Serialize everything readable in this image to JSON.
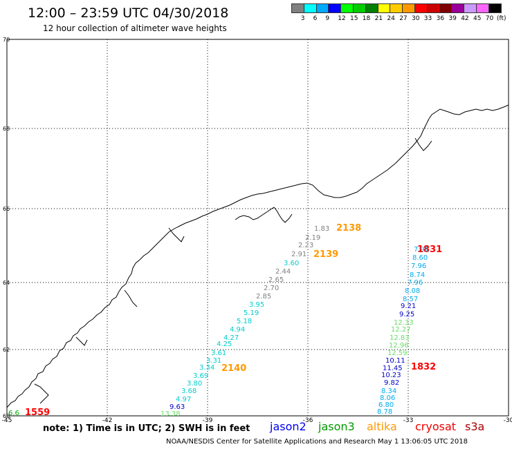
{
  "header": {
    "title": "12:00 – 23:59 UTC 04/30/2018",
    "subtitle": "12 hour collection of altimeter wave heights"
  },
  "legend": {
    "labels": [
      "3",
      "6",
      "9",
      "12",
      "15",
      "18",
      "21",
      "24",
      "27",
      "30",
      "33",
      "36",
      "39",
      "42",
      "45",
      "70"
    ],
    "unit": "(ft)",
    "colors": [
      "#808080",
      "#00ffff",
      "#00aaff",
      "#0000ff",
      "#00ff00",
      "#00cc00",
      "#008000",
      "#ffff00",
      "#ffcc00",
      "#ff9900",
      "#ff0000",
      "#cc0000",
      "#800000",
      "#990099",
      "#cc99ff",
      "#ff66ff",
      "#000000"
    ]
  },
  "axes": {
    "lon_labels": [
      "-45",
      "-42",
      "-39",
      "-36",
      "-33",
      "-30"
    ],
    "lat_labels": [
      "70",
      "68",
      "66",
      "64",
      "62",
      "60"
    ]
  },
  "tracks": [
    {
      "label": "2138",
      "color": "#ff9900"
    },
    {
      "label": "2139",
      "color": "#ff9900"
    },
    {
      "label": "2140",
      "color": "#ff9900"
    },
    {
      "label": "1831",
      "color": "#ff0000"
    },
    {
      "label": "1832",
      "color": "#ff0000"
    },
    {
      "label": "1559",
      "color": "#ff0000"
    }
  ],
  "measurements": [
    {
      "v": "1.83",
      "c": "#808080"
    },
    {
      "v": "2.19",
      "c": "#808080"
    },
    {
      "v": "2.23",
      "c": "#808080"
    },
    {
      "v": "2.91",
      "c": "#808080"
    },
    {
      "v": "3.60",
      "c": "#00cccc"
    },
    {
      "v": "2.44",
      "c": "#808080"
    },
    {
      "v": "2.65",
      "c": "#808080"
    },
    {
      "v": "2.70",
      "c": "#808080"
    },
    {
      "v": "2.85",
      "c": "#808080"
    },
    {
      "v": "3.95",
      "c": "#00cccc"
    },
    {
      "v": "5.19",
      "c": "#00cccc"
    },
    {
      "v": "5.18",
      "c": "#00cccc"
    },
    {
      "v": "4.94",
      "c": "#00cccc"
    },
    {
      "v": "4.27",
      "c": "#00cccc"
    },
    {
      "v": "4.25",
      "c": "#00cccc"
    },
    {
      "v": "3.61",
      "c": "#00cccc"
    },
    {
      "v": "3.31",
      "c": "#00cccc"
    },
    {
      "v": "3.34",
      "c": "#00cccc"
    },
    {
      "v": "3.69",
      "c": "#00cccc"
    },
    {
      "v": "3.80",
      "c": "#00cccc"
    },
    {
      "v": "3.68",
      "c": "#00cccc"
    },
    {
      "v": "4.97",
      "c": "#00cccc"
    },
    {
      "v": "9.63",
      "c": "#0000cc"
    },
    {
      "v": "13.38",
      "c": "#66dd66"
    },
    {
      "v": "7.91",
      "c": "#00aaee"
    },
    {
      "v": "8.60",
      "c": "#00aaee"
    },
    {
      "v": "7.96",
      "c": "#00aaee"
    },
    {
      "v": "8.74",
      "c": "#00aaee"
    },
    {
      "v": "7.96",
      "c": "#00aaee"
    },
    {
      "v": "8.08",
      "c": "#00aaee"
    },
    {
      "v": "8.57",
      "c": "#00aaee"
    },
    {
      "v": "9.21",
      "c": "#0000cc"
    },
    {
      "v": "9.25",
      "c": "#0000cc"
    },
    {
      "v": "12.33",
      "c": "#66dd66"
    },
    {
      "v": "12.27",
      "c": "#66dd66"
    },
    {
      "v": "12.83",
      "c": "#66dd66"
    },
    {
      "v": "12.96",
      "c": "#66dd66"
    },
    {
      "v": "12.59",
      "c": "#66dd66"
    },
    {
      "v": "10.11",
      "c": "#0000cc"
    },
    {
      "v": "11.45",
      "c": "#0000cc"
    },
    {
      "v": "10.23",
      "c": "#0000cc"
    },
    {
      "v": "9.82",
      "c": "#0000cc"
    },
    {
      "v": "8.34",
      "c": "#00aaee"
    },
    {
      "v": "8.06",
      "c": "#00aaee"
    },
    {
      "v": "6.80",
      "c": "#00aaee"
    },
    {
      "v": "8.78",
      "c": "#00aaee"
    },
    {
      "v": "6.6",
      "c": "#00aa00"
    }
  ],
  "footer": {
    "note": "note:  1) Time is in UTC;  2) SWH is in feet",
    "satellites": [
      {
        "name": "jason2",
        "color": "#0000ee"
      },
      {
        "name": "jason3",
        "color": "#009900"
      },
      {
        "name": "altika",
        "color": "#ff9900"
      },
      {
        "name": "cryosat",
        "color": "#ee0000"
      },
      {
        "name": "s3a",
        "color": "#aa0000"
      }
    ],
    "credit": "NOAA/NESDIS Center for Satellite Applications and Research     May  1 13:06:05 UTC 2018"
  }
}
